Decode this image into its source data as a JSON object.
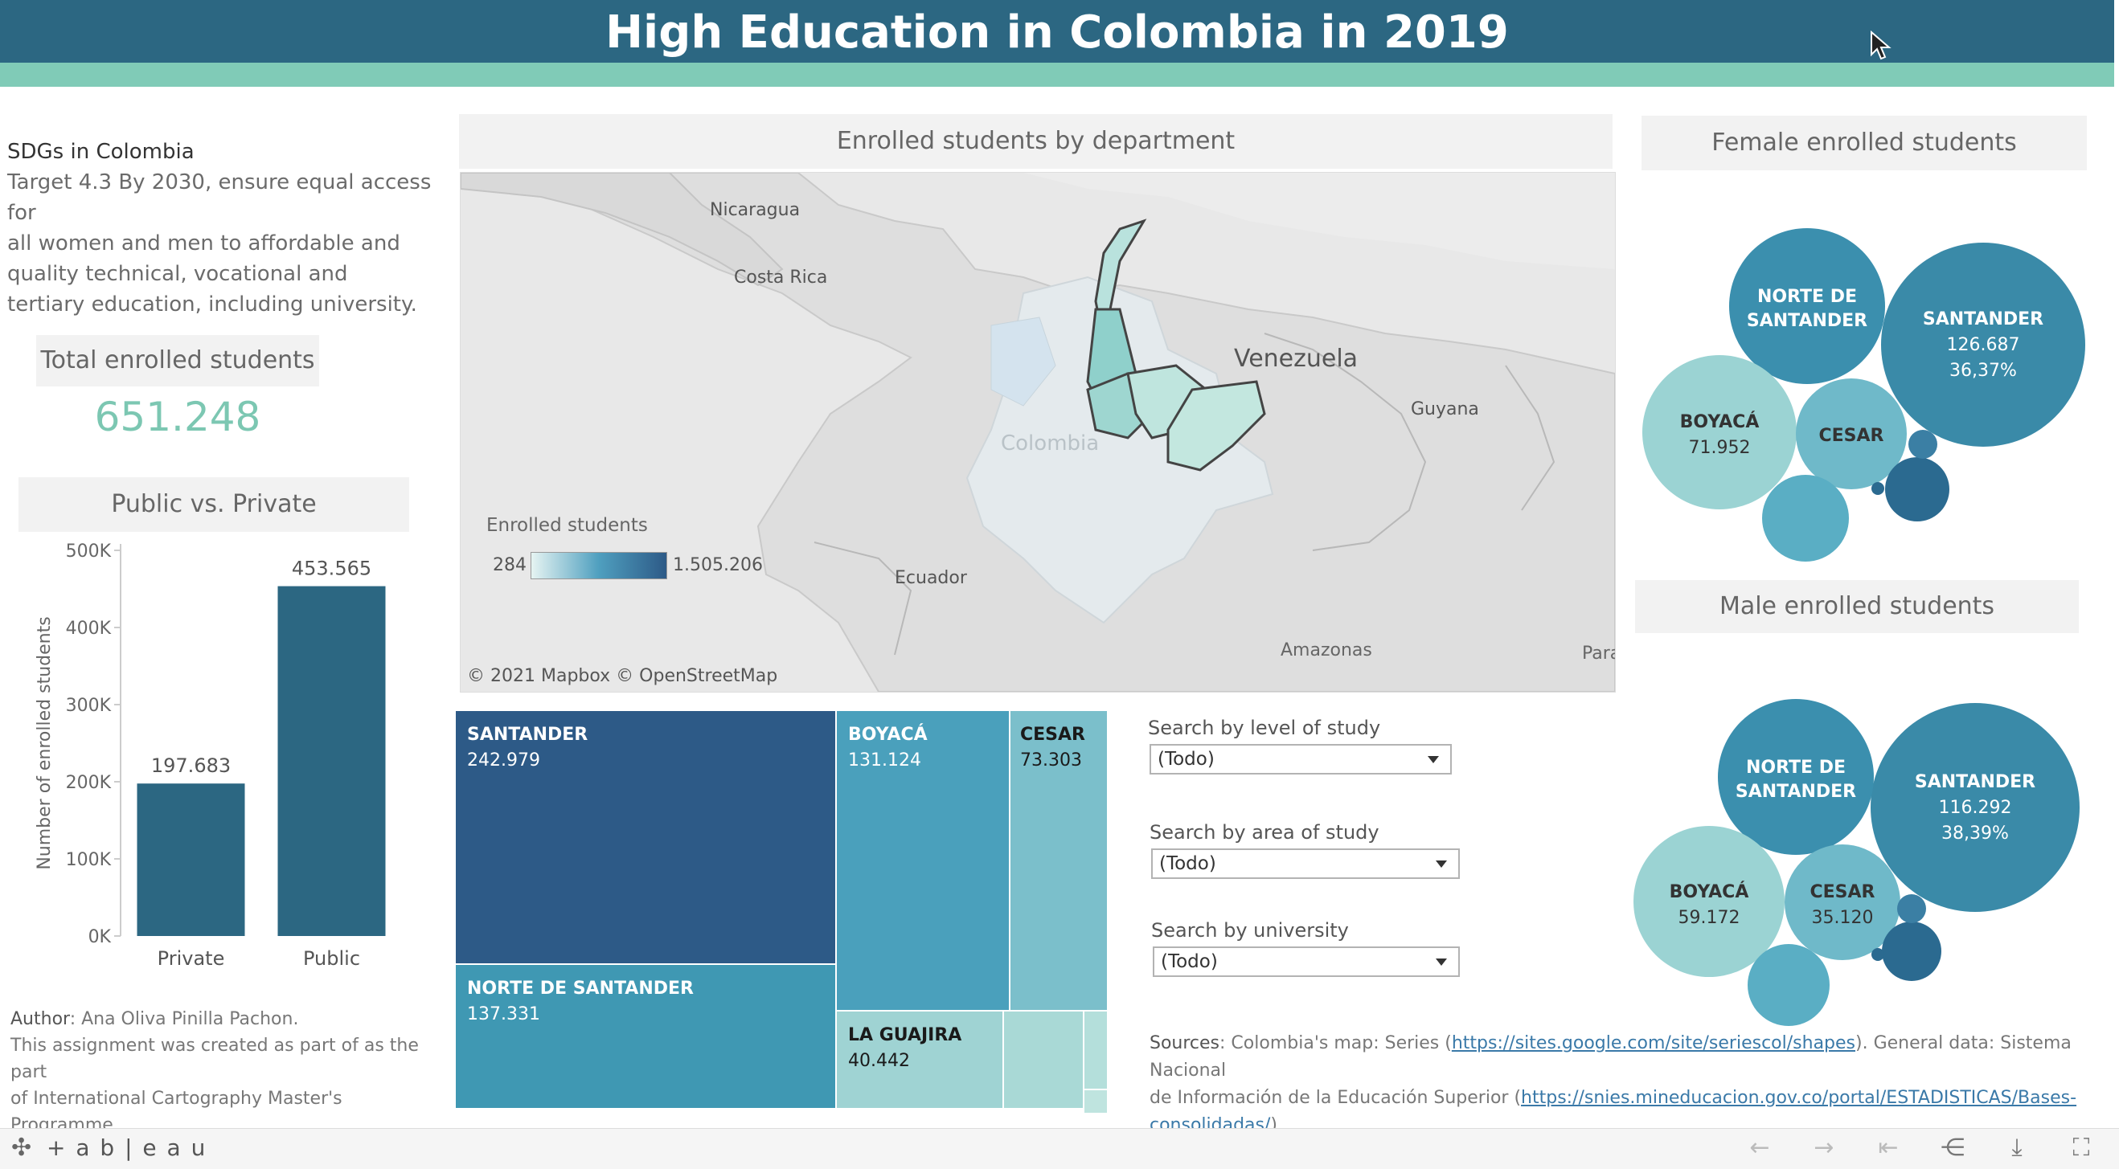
{
  "header": {
    "title": "High Education in Colombia in 2019"
  },
  "sdg": {
    "heading": "SDGs in Colombia",
    "lines": [
      "Target 4.3 By 2030, ensure equal access for",
      "all women and men to affordable and",
      "quality technical, vocational and",
      "tertiary education, including university."
    ]
  },
  "total": {
    "label": "Total enrolled students",
    "value": "651.248"
  },
  "bar_chart": {
    "title": "Public vs. Private",
    "chart_data": {
      "type": "bar",
      "categories": [
        "Private",
        "Public"
      ],
      "values": [
        197683,
        453565
      ],
      "value_labels": [
        "197.683",
        "453.565"
      ],
      "ylabel": "Number of enrolled students",
      "yticks": [
        "0K",
        "100K",
        "200K",
        "300K",
        "400K",
        "500K"
      ],
      "ylim": [
        0,
        500000
      ],
      "color": "#2c6782"
    }
  },
  "map": {
    "title": "Enrolled students by department",
    "labels": {
      "nicaragua": "Nicaragua",
      "costa_rica": "Costa Rica",
      "venezuela": "Venezuela",
      "guyana": "Guyana",
      "colombia": "Colombia",
      "ecuador": "Ecuador",
      "amazonas": "Amazonas",
      "para": "Para"
    },
    "legend": {
      "title": "Enrolled students",
      "min": "284",
      "max": "1.505.206"
    },
    "attribution": "© 2021 Mapbox  © OpenStreetMap"
  },
  "treemap": {
    "cells": [
      {
        "name": "SANTANDER",
        "value": "242.979",
        "color": "#2d5a87"
      },
      {
        "name": "NORTE DE SANTANDER",
        "value": "137.331",
        "color": "#3f98b3"
      },
      {
        "name": "BOYACÁ",
        "value": "131.124",
        "color": "#4aa0bc"
      },
      {
        "name": "CESAR",
        "value": "73.303",
        "color": "#7bbfcb"
      },
      {
        "name": "LA GUAJIRA",
        "value": "40.442",
        "color": "#9fd3d3"
      }
    ]
  },
  "filters": [
    {
      "label": "Search by level of study",
      "value": "(Todo)"
    },
    {
      "label": "Search by area of study",
      "value": "(Todo)"
    },
    {
      "label": "Search by university",
      "value": "(Todo)"
    }
  ],
  "female": {
    "title": "Female enrolled students",
    "chart_data": {
      "type": "bubble",
      "bubbles": [
        {
          "name": "SANTANDER",
          "value": "126.687",
          "share": "36,37%",
          "color": "#3a8aa8"
        },
        {
          "name": "NORTE DE SANTANDER",
          "value": "",
          "share": "",
          "color": "#3b8fae"
        },
        {
          "name": "BOYACÁ",
          "value": "71.952",
          "share": "",
          "color": "#9bd3d3"
        },
        {
          "name": "CESAR",
          "value": "",
          "share": "",
          "color": "#6fb9c9"
        }
      ]
    }
  },
  "male": {
    "title": "Male enrolled students",
    "chart_data": {
      "type": "bubble",
      "bubbles": [
        {
          "name": "SANTANDER",
          "value": "116.292",
          "share": "38,39%",
          "color": "#3a8aa8"
        },
        {
          "name": "NORTE DE SANTANDER",
          "value": "",
          "share": "",
          "color": "#3b8fae"
        },
        {
          "name": "BOYACÁ",
          "value": "59.172",
          "share": "",
          "color": "#9bd3d3"
        },
        {
          "name": "CESAR",
          "value": "35.120",
          "share": "",
          "color": "#6fb9c9"
        }
      ]
    }
  },
  "author": {
    "label": "Author",
    "name": ": Ana Oliva Pinilla Pachon.",
    "lines": [
      "This assignment was created as part of as the part",
      "of International Cartography Master's",
      "Programme."
    ]
  },
  "sources": {
    "label": "Sources",
    "text1": ": Colombia's map: Series (",
    "link1": "https://sites.google.com/site/seriescol/shapes",
    "text2": "). General data: Sistema Nacional",
    "text3": "de Información de la Educación Superior (",
    "link2a": "https://snies.mineducacion.gov.co/portal/ESTADISTICAS/Bases-",
    "link2b": "consolidadas/",
    "text4": ")."
  },
  "toolbar": {
    "brand": "+ a b | e a u"
  }
}
